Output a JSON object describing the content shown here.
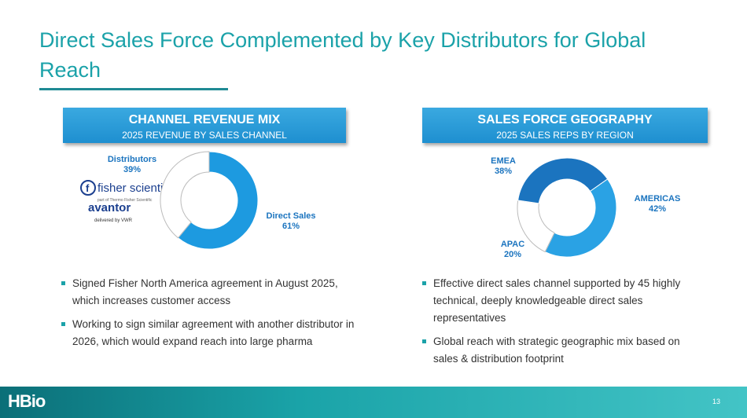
{
  "title": "Direct Sales Force Complemented by Key Distributors for Global Reach",
  "chart_data": [
    {
      "type": "donut",
      "title": "CHANNEL REVENUE MIX",
      "subtitle": "2025 REVENUE BY SALES CHANNEL",
      "categories": [
        "Direct Sales",
        "Distributors"
      ],
      "values": [
        61,
        39
      ],
      "value_labels": [
        "61%",
        "39%"
      ],
      "colors": [
        "#1d9ae0",
        "#ffffff"
      ]
    },
    {
      "type": "donut",
      "title": "SALES FORCE GEOGRAPHY",
      "subtitle": "2025 SALES REPS BY REGION",
      "categories": [
        "AMERICAS",
        "APAC",
        "EMEA"
      ],
      "values": [
        42,
        20,
        38
      ],
      "value_labels": [
        "42%",
        "20%",
        "38%"
      ],
      "colors": [
        "#2aa2e4",
        "#ffffff",
        "#1b74bf"
      ]
    }
  ],
  "logos": {
    "fisher": "fisher scientific",
    "fisher_sub": "part of Thermo Fisher Scientific",
    "avantor": "avantor",
    "avantor_sub": "delivered by VWR"
  },
  "bullets_left": [
    "Signed Fisher North America agreement in August 2025, which increases customer access",
    "Working to sign similar agreement with another distributor in 2026, which would expand reach into large pharma"
  ],
  "bullets_right": [
    "Effective direct sales channel supported by 45 highly technical, deeply knowledgeable direct sales representatives",
    "Global reach with strategic geographic mix based on sales & distribution footprint"
  ],
  "footer": {
    "logo": "HBio",
    "page": "13"
  }
}
